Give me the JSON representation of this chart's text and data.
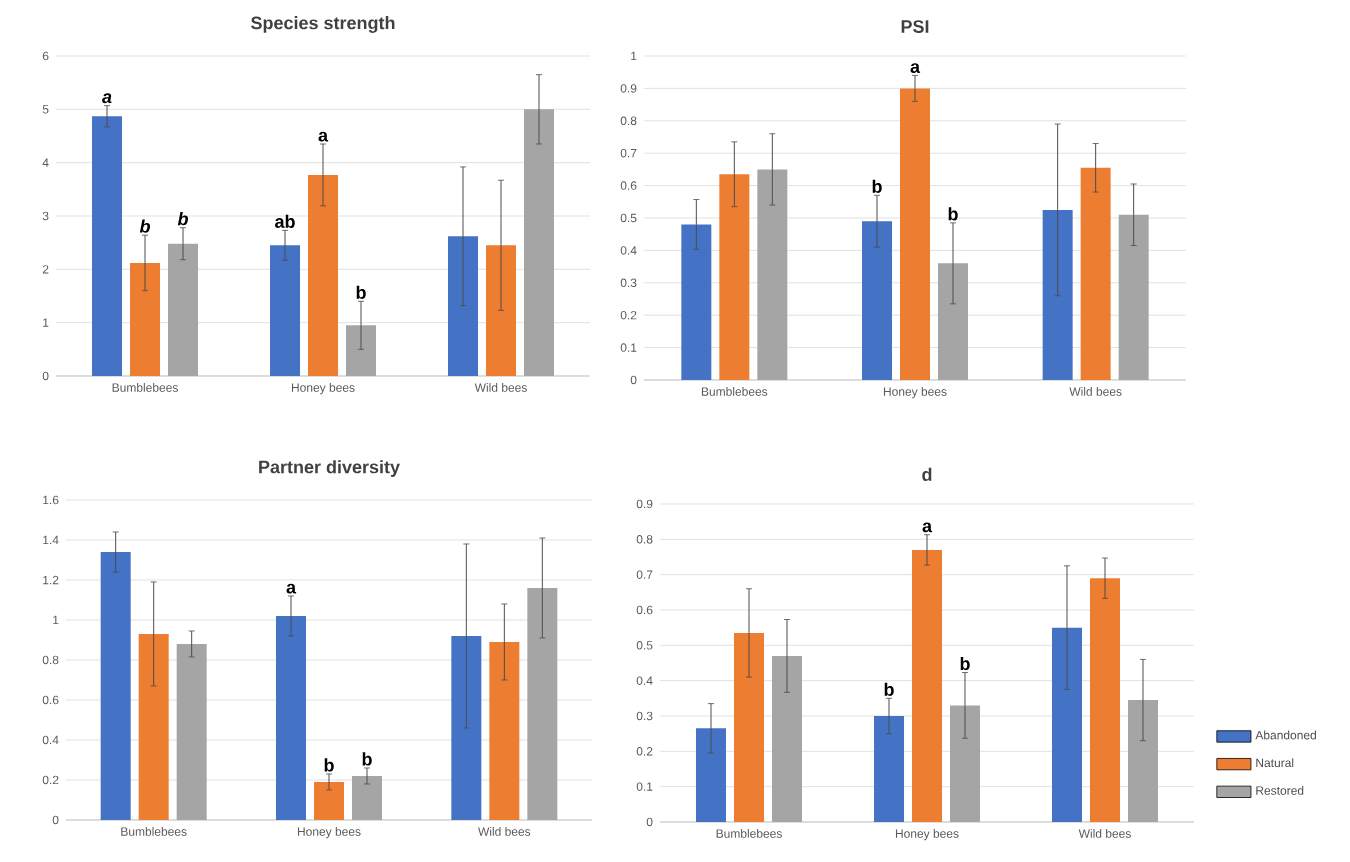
{
  "chart_data": [
    {
      "type": "bar",
      "title": "Species strength",
      "categories": [
        "Bumblebees",
        "Honey bees",
        "Wild bees"
      ],
      "ylim": [
        0,
        6
      ],
      "yticks": [
        0,
        1,
        2,
        3,
        4,
        5,
        6
      ],
      "grid": "y",
      "legend": false,
      "series": [
        {
          "color": "#4472c4",
          "values": [
            4.87,
            2.45,
            2.62
          ],
          "errors": [
            0.2,
            0.28,
            1.3
          ]
        },
        {
          "color": "#ed7d31",
          "values": [
            2.12,
            3.77,
            2.45
          ],
          "errors": [
            0.52,
            0.58,
            1.22
          ]
        },
        {
          "color": "#a5a5a5",
          "values": [
            2.48,
            0.95,
            5.0
          ],
          "errors": [
            0.3,
            0.45,
            0.65
          ]
        }
      ],
      "annotations": [
        "*a*",
        "*b*",
        "*b*",
        "ab",
        "a",
        "b"
      ]
    },
    {
      "type": "bar",
      "title": "PSI",
      "categories": [
        "Bumblebees",
        "Honey bees",
        "Wild bees"
      ],
      "ylim": [
        0,
        1
      ],
      "yticks": [
        0,
        0.1,
        0.2,
        0.3,
        0.4,
        0.5,
        0.6,
        0.7,
        0.8,
        0.9,
        1
      ],
      "grid": "y",
      "legend": false,
      "series": [
        {
          "color": "#4472c4",
          "values": [
            0.48,
            0.49,
            0.525
          ],
          "errors": [
            0.077,
            0.08,
            0.265
          ]
        },
        {
          "color": "#ed7d31",
          "values": [
            0.635,
            0.9,
            0.655
          ],
          "errors": [
            0.1,
            0.04,
            0.075
          ]
        },
        {
          "color": "#a5a5a5",
          "values": [
            0.65,
            0.36,
            0.51
          ],
          "errors": [
            0.11,
            0.125,
            0.095
          ]
        }
      ],
      "annotations": [
        "b",
        "a",
        "b"
      ]
    },
    {
      "type": "bar",
      "title": "Partner diversity",
      "categories": [
        "Bumblebees",
        "Honey bees",
        "Wild bees"
      ],
      "ylim": [
        0,
        1.6
      ],
      "yticks": [
        0,
        0.2,
        0.4,
        0.6,
        0.8,
        1,
        1.2,
        1.4,
        1.6
      ],
      "grid": "y",
      "legend": false,
      "series": [
        {
          "color": "#4472c4",
          "values": [
            1.34,
            1.02,
            0.92
          ],
          "errors": [
            0.1,
            0.1,
            0.46
          ]
        },
        {
          "color": "#ed7d31",
          "values": [
            0.93,
            0.19,
            0.89
          ],
          "errors": [
            0.26,
            0.04,
            0.19
          ]
        },
        {
          "color": "#a5a5a5",
          "values": [
            0.88,
            0.22,
            1.16
          ],
          "errors": [
            0.065,
            0.04,
            0.25
          ]
        }
      ],
      "annotations": [
        "a",
        "b",
        "b"
      ]
    },
    {
      "type": "bar",
      "title": "d",
      "categories": [
        "Bumblebees",
        "Honey bees",
        "Wild bees"
      ],
      "ylim": [
        0,
        0.9
      ],
      "yticks": [
        0,
        0.1,
        0.2,
        0.3,
        0.4,
        0.5,
        0.6,
        0.7,
        0.8,
        0.9
      ],
      "grid": "y",
      "legend": "right",
      "series": [
        {
          "name": "Abandoned",
          "color": "#4472c4",
          "values": [
            0.265,
            0.3,
            0.55
          ],
          "errors": [
            0.07,
            0.05,
            0.175
          ]
        },
        {
          "name": "Natural",
          "color": "#ed7d31",
          "values": [
            0.535,
            0.77,
            0.69
          ],
          "errors": [
            0.125,
            0.043,
            0.057
          ]
        },
        {
          "name": "Restored",
          "color": "#a5a5a5",
          "values": [
            0.47,
            0.33,
            0.345
          ],
          "errors": [
            0.103,
            0.093,
            0.115
          ]
        }
      ],
      "annotations": [
        "b",
        "a",
        "b"
      ]
    }
  ]
}
